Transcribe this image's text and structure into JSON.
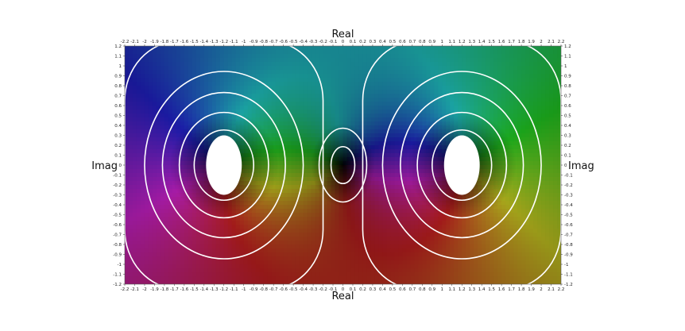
{
  "chart_data": {
    "type": "heatmap",
    "title": "",
    "xlabel": "Real",
    "ylabel": "Imag",
    "xlim": [
      -2.2,
      2.2
    ],
    "ylim": [
      -1.2,
      1.2
    ],
    "x_ticks": [
      "-2.2",
      "-2.1",
      "-2",
      "-1.9",
      "-1.8",
      "-1.7",
      "-1.6",
      "-1.5",
      "-1.4",
      "-1.3",
      "-1.2",
      "-1.1",
      "-1",
      "-0.9",
      "-0.8",
      "-0.7",
      "-0.6",
      "-0.5",
      "-0.4",
      "-0.3",
      "-0.2",
      "-0.1",
      "0",
      "0.1",
      "0.2",
      "0.3",
      "0.4",
      "0.5",
      "0.6",
      "0.7",
      "0.8",
      "0.9",
      "1",
      "1.1",
      "1.2",
      "1.3",
      "1.4",
      "1.5",
      "1.6",
      "1.7",
      "1.8",
      "1.9",
      "2",
      "2.1",
      "2.2"
    ],
    "y_ticks": [
      "1.2",
      "1.1",
      "1",
      "0.9",
      "0.8",
      "0.7",
      "0.6",
      "0.5",
      "0.4",
      "0.3",
      "0.2",
      "0.1",
      "0",
      "-0.1",
      "-0.2",
      "-0.3",
      "-0.4",
      "-0.5",
      "-0.6",
      "-0.7",
      "-0.8",
      "-0.9",
      "-1",
      "-1.1",
      "-1.2"
    ],
    "coloring": "domain coloring (hue = argument, brightness = modulus)",
    "zero": {
      "x": 0,
      "y": 0
    },
    "poles": [
      {
        "x": -1.2,
        "y": 0
      },
      {
        "x": 1.2,
        "y": 0
      }
    ],
    "contours": [
      {
        "center_x": 0,
        "rx": [
          0.12,
          0.24
        ]
      },
      {
        "center_x": -1.2,
        "rx": [
          0.3,
          0.45,
          0.62,
          0.8
        ]
      },
      {
        "center_x": 1.2,
        "rx": [
          0.3,
          0.45,
          0.62,
          0.8
        ]
      }
    ],
    "grid": false,
    "legend": "none"
  }
}
